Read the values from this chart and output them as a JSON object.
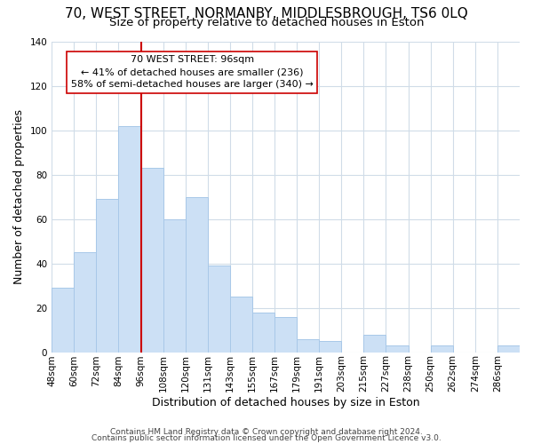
{
  "title": "70, WEST STREET, NORMANBY, MIDDLESBROUGH, TS6 0LQ",
  "subtitle": "Size of property relative to detached houses in Eston",
  "xlabel": "Distribution of detached houses by size in Eston",
  "ylabel": "Number of detached properties",
  "bar_heights": [
    29,
    45,
    69,
    102,
    83,
    60,
    70,
    39,
    25,
    18,
    16,
    6,
    5,
    0,
    8,
    3,
    0,
    3,
    0,
    0,
    3
  ],
  "tick_labels": [
    "48sqm",
    "60sqm",
    "72sqm",
    "84sqm",
    "96sqm",
    "108sqm",
    "120sqm",
    "131sqm",
    "143sqm",
    "155sqm",
    "167sqm",
    "179sqm",
    "191sqm",
    "203sqm",
    "215sqm",
    "227sqm",
    "238sqm",
    "250sqm",
    "262sqm",
    "274sqm",
    "286sqm"
  ],
  "bar_color": "#cce0f5",
  "bar_edge_color": "#a8c8e8",
  "vline_color": "#cc0000",
  "annotation_title": "70 WEST STREET: 96sqm",
  "annotation_line1": "← 41% of detached houses are smaller (236)",
  "annotation_line2": "58% of semi-detached houses are larger (340) →",
  "annotation_box_color": "#ffffff",
  "annotation_box_edge": "#cc0000",
  "ylim": [
    0,
    140
  ],
  "yticks": [
    0,
    20,
    40,
    60,
    80,
    100,
    120,
    140
  ],
  "footer1": "Contains HM Land Registry data © Crown copyright and database right 2024.",
  "footer2": "Contains public sector information licensed under the Open Government Licence v3.0.",
  "background_color": "#ffffff",
  "grid_color": "#d0dce8",
  "title_fontsize": 11,
  "subtitle_fontsize": 9.5,
  "axis_label_fontsize": 9,
  "tick_fontsize": 7.5,
  "footer_fontsize": 6.5,
  "annot_fontsize": 8
}
